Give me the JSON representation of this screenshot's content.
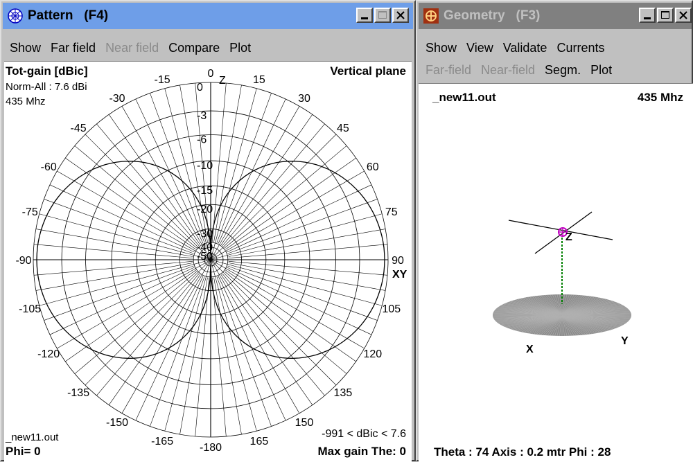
{
  "pattern_window": {
    "title": "Pattern   (F4)",
    "menu1": [
      "Show",
      "Far field",
      "Near field",
      "Compare",
      "Plot"
    ],
    "heading": "Tot-gain [dBic]",
    "norm": "Norm-All : 7.6 dBi",
    "freq": "435 Mhz",
    "plane": "Vertical plane",
    "z_label": "Z",
    "xy_label": "XY",
    "file": "_new11.out",
    "phi": "Phi= 0",
    "range": "-991 < dBic < 7.6",
    "max_gain": "Max gain The: 0",
    "angles_left": [
      "-15",
      "-30",
      "-45",
      "-60",
      "-75",
      "-90",
      "-105",
      "-120",
      "-135",
      "-150",
      "-165"
    ],
    "angles_right": [
      "15",
      "30",
      "45",
      "60",
      "75",
      "90",
      "105",
      "120",
      "135",
      "150",
      "165"
    ],
    "angle_top": "0",
    "angle_bottom": "-180",
    "db_labels": [
      "0",
      "-3",
      "-6",
      "-10",
      "-15",
      "-20",
      "-30",
      "-40",
      "-50"
    ]
  },
  "geometry_window": {
    "title": "Geometry   (F3)",
    "menu1": [
      "Show",
      "View",
      "Validate",
      "Currents"
    ],
    "menu2": [
      "Far-field",
      "Near-field",
      "Segm.",
      "Plot"
    ],
    "file": "_new11.out",
    "freq": "435 Mhz",
    "axis_x": "X",
    "axis_y": "Y",
    "axis_z": "Z",
    "status": "Theta : 74  Axis : 0.2 mtr    Phi : 28"
  },
  "colors": {
    "active_title": "#6e9ee8",
    "inactive_title": "#808080",
    "source_marker": "#c000c0",
    "feed_line": "#008000",
    "ground": "#8c8c8c"
  }
}
